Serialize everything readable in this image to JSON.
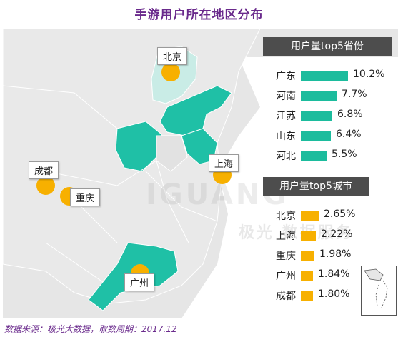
{
  "title": "手游用户所在地区分布",
  "footer": "数据来源：极光大数据，取数周期：2017.12",
  "watermark": "IGUANG",
  "watermark2": "极光 数据服务",
  "colors": {
    "province_dark": "#1fc0a6",
    "province_light": "#c9ece6",
    "bar_province": "#1cbc9d",
    "bar_city": "#f7b000",
    "dot": "#f7b000",
    "header": "#4d4d4d",
    "title": "#6a2a8c"
  },
  "map_labels": {
    "beijing": "北京",
    "shanghai": "上海",
    "chengdu": "成都",
    "chongqing": "重庆",
    "guangzhou": "广州"
  },
  "chart_data": [
    {
      "type": "bar",
      "title": "用户量top5省份",
      "categories": [
        "广东",
        "河南",
        "江苏",
        "山东",
        "河北"
      ],
      "values": [
        10.2,
        7.7,
        6.8,
        6.4,
        5.5
      ],
      "value_labels": [
        "10.2%",
        "7.7%",
        "6.8%",
        "6.4%",
        "5.5%"
      ],
      "unit": "%",
      "orientation": "horizontal"
    },
    {
      "type": "bar",
      "title": "用户量top5城市",
      "categories": [
        "北京",
        "上海",
        "重庆",
        "广州",
        "成都"
      ],
      "values": [
        2.65,
        2.22,
        1.98,
        1.84,
        1.8
      ],
      "value_labels": [
        "2.65%",
        "2.22%",
        "1.98%",
        "1.84%",
        "1.80%"
      ],
      "unit": "%",
      "orientation": "horizontal"
    }
  ]
}
